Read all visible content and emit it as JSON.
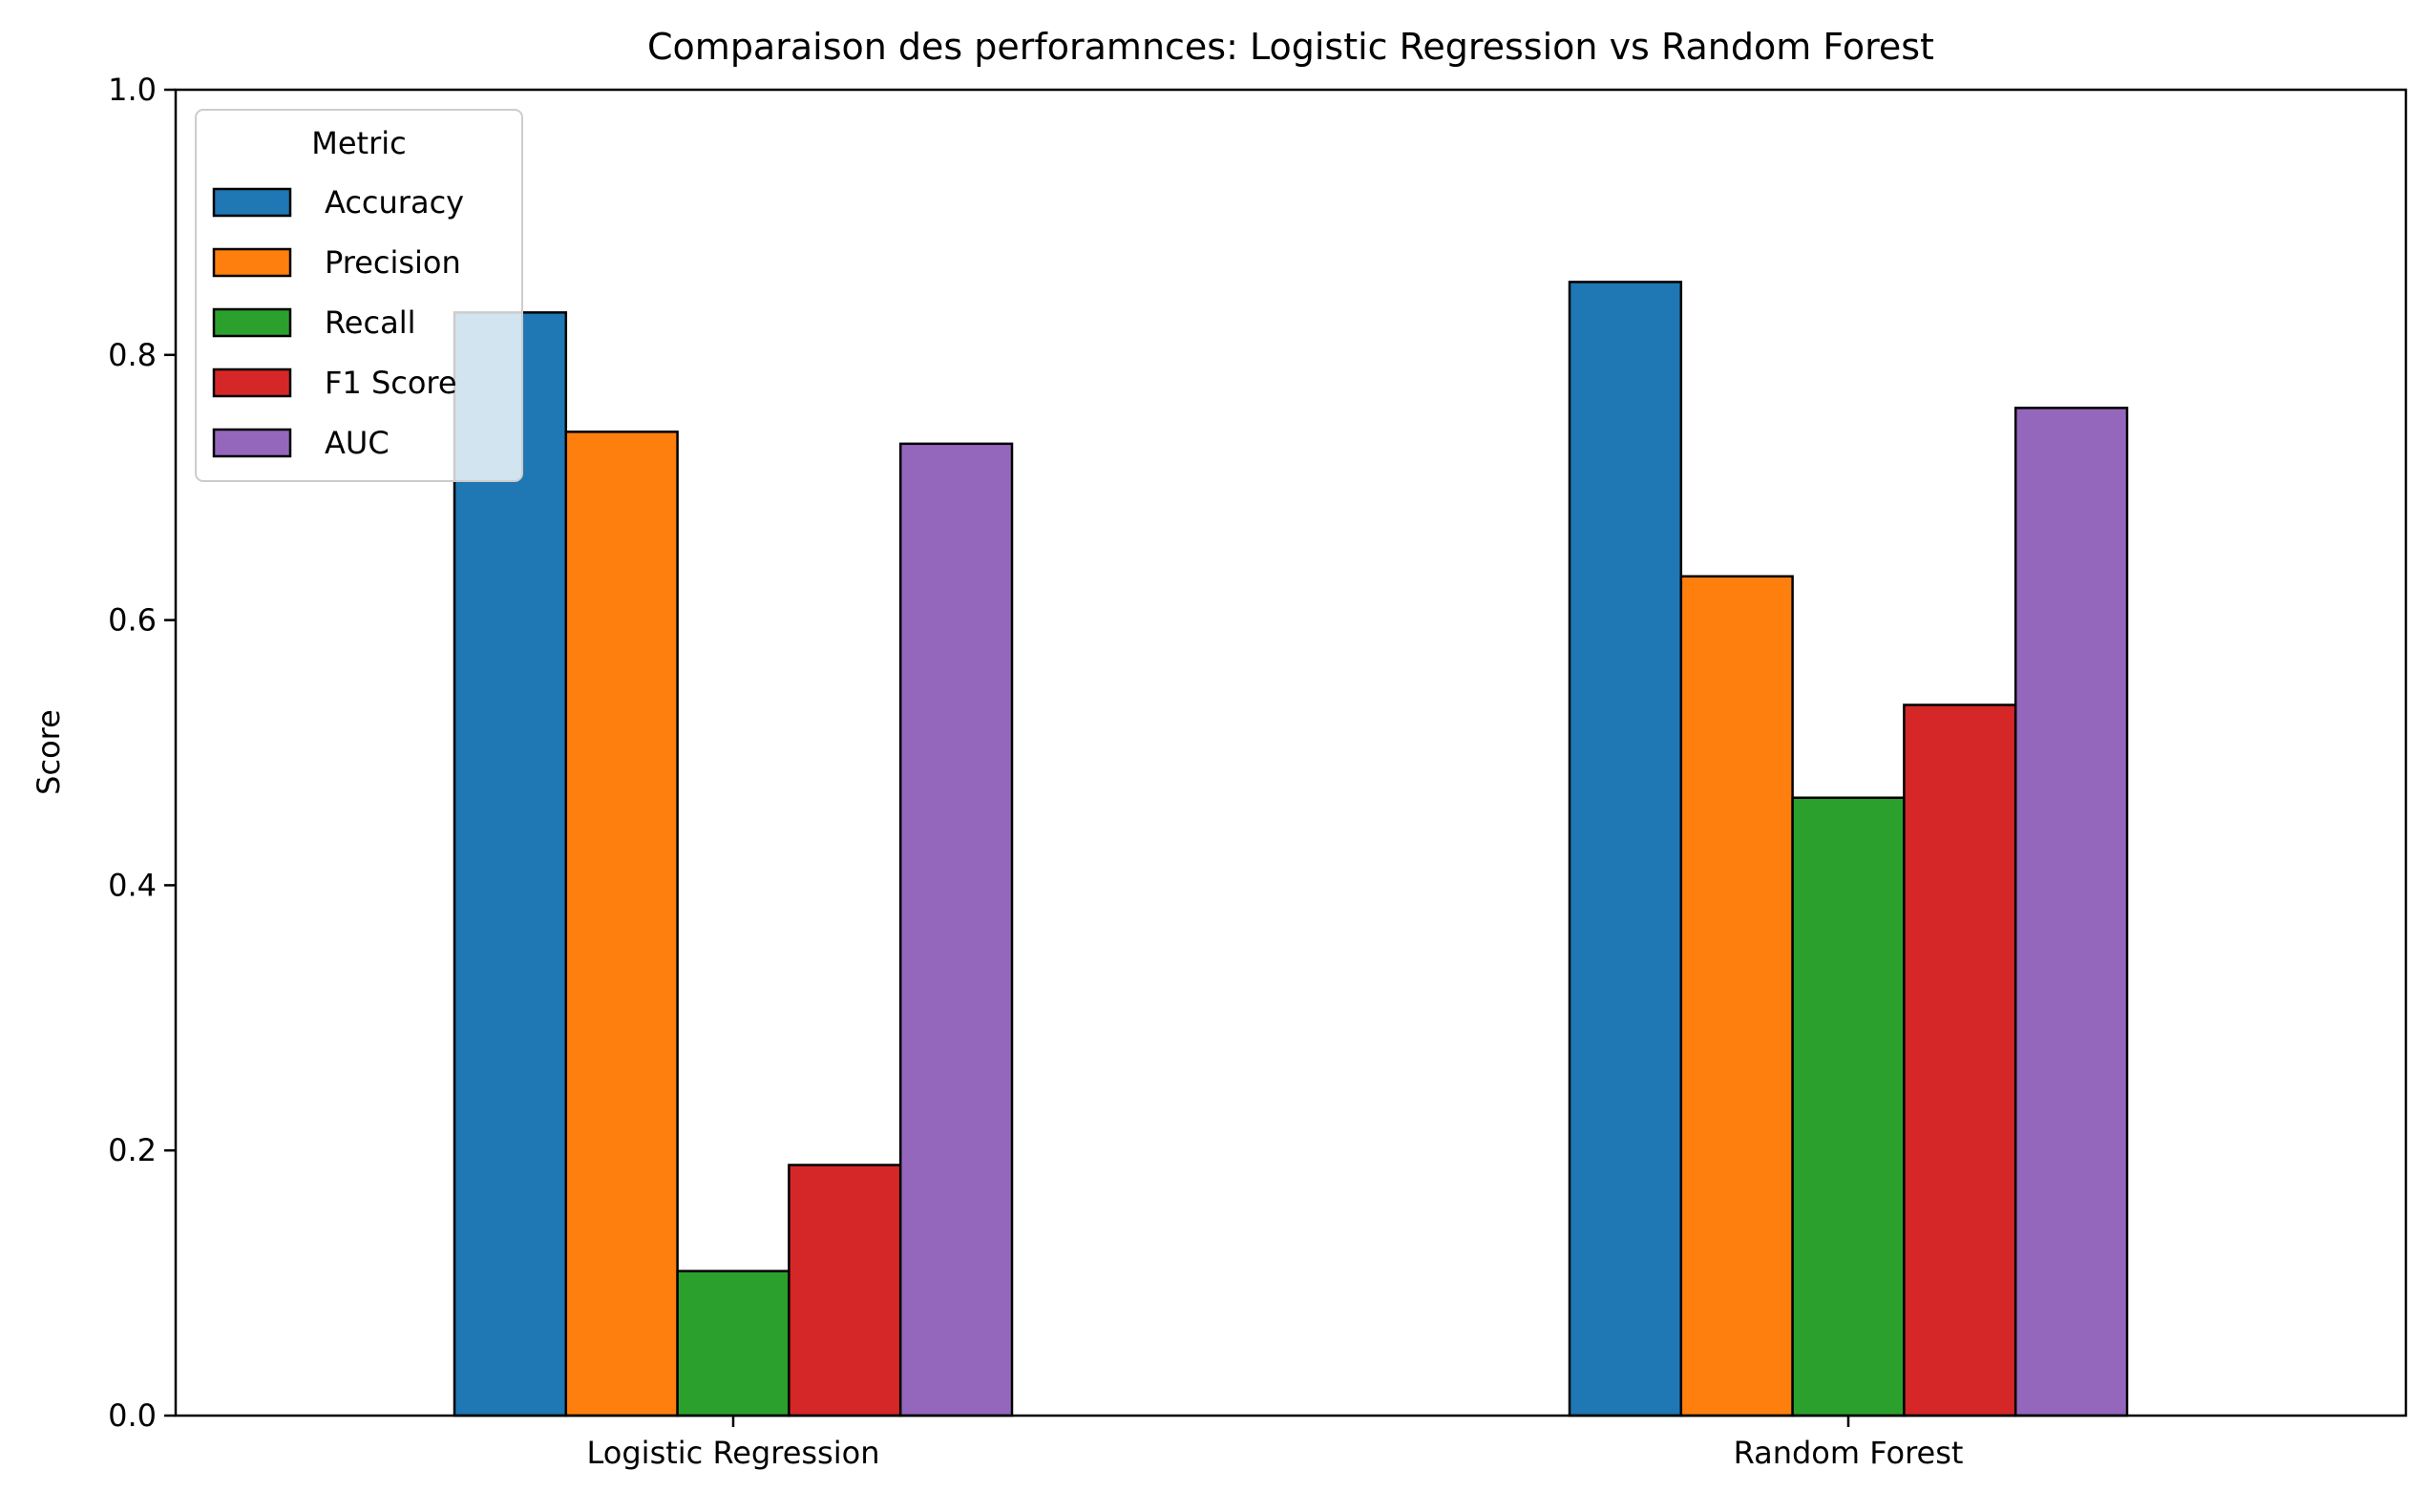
{
  "chart_data": {
    "type": "bar",
    "title": "Comparaison des perforamnces: Logistic Regression vs Random Forest",
    "xlabel": "",
    "ylabel": "Score",
    "ylim": [
      0,
      1.0
    ],
    "yticks": [
      {
        "value": 0.0,
        "label": "0.0"
      },
      {
        "value": 0.2,
        "label": "0.2"
      },
      {
        "value": 0.4,
        "label": "0.4"
      },
      {
        "value": 0.6,
        "label": "0.6"
      },
      {
        "value": 0.8,
        "label": "0.8"
      },
      {
        "value": 1.0,
        "label": "1.0"
      }
    ],
    "categories": [
      "Logistic Regression",
      "Random Forest"
    ],
    "series": [
      {
        "name": "Accuracy",
        "color": "#1f77b4",
        "values": [
          0.832,
          0.855
        ]
      },
      {
        "name": "Precision",
        "color": "#ff7f0e",
        "values": [
          0.742,
          0.633
        ]
      },
      {
        "name": "Recall",
        "color": "#2ca02c",
        "values": [
          0.109,
          0.466
        ]
      },
      {
        "name": "F1 Score",
        "color": "#d62728",
        "values": [
          0.189,
          0.536
        ]
      },
      {
        "name": "AUC",
        "color": "#9467bd",
        "values": [
          0.733,
          0.76
        ]
      }
    ],
    "legend": {
      "title": "Metric",
      "placement": "top-left"
    },
    "grid": false,
    "bar_edge_color": "#000000"
  }
}
